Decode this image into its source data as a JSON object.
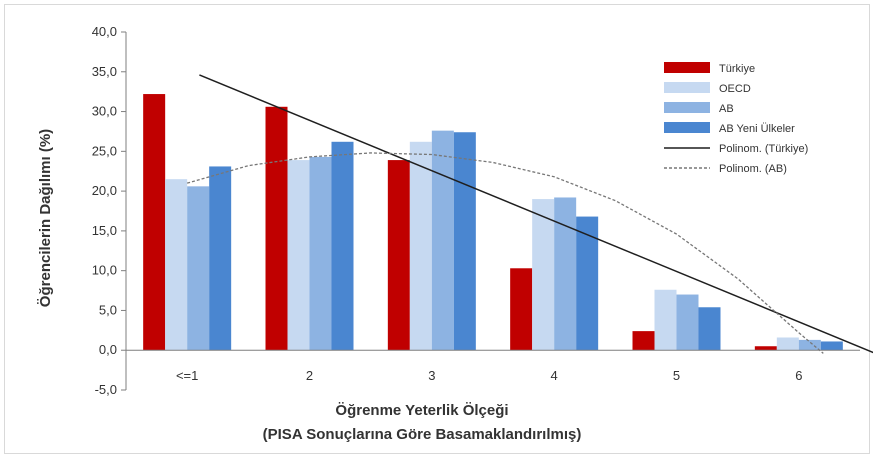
{
  "chart_data": {
    "type": "bar",
    "title": "",
    "ylabel": "Öğrencilerin Dağılımı (%)",
    "xlabel_line1": "Öğrenme Yeterlik Ölçeği",
    "xlabel_line2": "(PISA Sonuçlarına Göre Basamaklandırılmış)",
    "ylim": [
      -5,
      40
    ],
    "y_ticks": [
      "40,0",
      "35,0",
      "30,0",
      "25,0",
      "20,0",
      "15,0",
      "10,0",
      "5,0",
      "0,0",
      "-5,0"
    ],
    "categories": [
      "<=1",
      "2",
      "3",
      "4",
      "5",
      "6"
    ],
    "series": [
      {
        "name": "Türkiye",
        "color": "#c00000",
        "values": [
          32.2,
          30.6,
          23.9,
          10.3,
          2.4,
          0.5
        ]
      },
      {
        "name": "OECD",
        "color": "#c6d9f1",
        "values": [
          21.5,
          23.9,
          26.2,
          19.0,
          7.6,
          1.6
        ]
      },
      {
        "name": "AB",
        "color": "#8db3e2",
        "values": [
          20.6,
          24.3,
          27.6,
          19.2,
          7.0,
          1.3
        ]
      },
      {
        "name": "AB Yeni Ülkeler",
        "color": "#4a86d0",
        "values": [
          23.1,
          26.2,
          27.4,
          16.8,
          5.4,
          1.1
        ]
      }
    ],
    "trendlines": [
      {
        "name": "Polinom. (Türkiye)",
        "style": "solid",
        "color": "#1f1f1f",
        "points": [
          [
            0.1,
            34.6
          ],
          [
            5.8,
            -1.5
          ]
        ]
      },
      {
        "name": "Polinom. (AB)",
        "style": "dotted",
        "color": "#777777",
        "points": [
          [
            0.0,
            21.0
          ],
          [
            0.5,
            23.2
          ],
          [
            1.0,
            24.3
          ],
          [
            1.5,
            24.8
          ],
          [
            2.0,
            24.6
          ],
          [
            2.5,
            23.6
          ],
          [
            3.0,
            21.8
          ],
          [
            3.5,
            18.8
          ],
          [
            4.0,
            14.6
          ],
          [
            4.5,
            9.0
          ],
          [
            5.0,
            2.2
          ],
          [
            5.2,
            -0.4
          ]
        ]
      }
    ],
    "grid": false,
    "legend_position": "right"
  }
}
